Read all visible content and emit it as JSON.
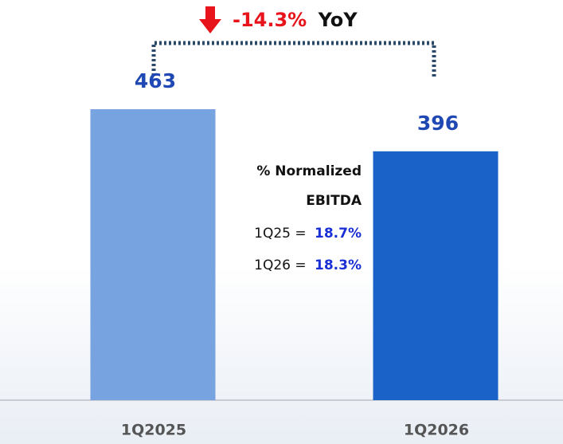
{
  "chart_data": {
    "type": "bar",
    "categories": [
      "1Q2025",
      "1Q2026"
    ],
    "values": [
      463,
      396
    ],
    "colors": [
      "#77a3e0",
      "#1a62c8"
    ],
    "change": {
      "value": "-14.3%",
      "label": "YoY"
    },
    "note": {
      "title_line1": "% Normalized",
      "title_line2": "EBITDA",
      "rows": [
        {
          "label": "1Q25 =",
          "value": "18.7%"
        },
        {
          "label": "1Q26 =",
          "value": "18.3%"
        }
      ]
    }
  }
}
